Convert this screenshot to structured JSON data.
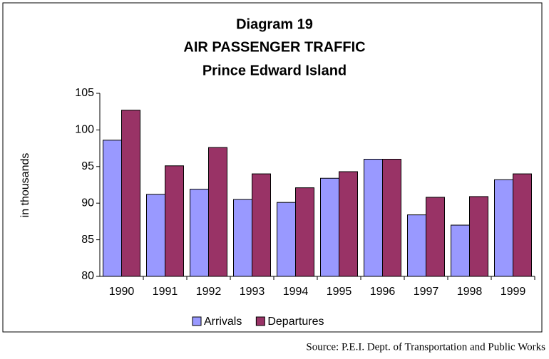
{
  "chart_data": {
    "type": "bar",
    "title": "Diagram 19",
    "subtitle": "AIR PASSENGER TRAFFIC",
    "subtitle2": "Prince Edward Island",
    "ylabel": "in thousands",
    "categories": [
      "1990",
      "1991",
      "1992",
      "1993",
      "1994",
      "1995",
      "1996",
      "1997",
      "1998",
      "1999"
    ],
    "series": [
      {
        "name": "Arrivals",
        "color": "#9999ff",
        "values": [
          98.6,
          91.2,
          91.9,
          90.5,
          90.1,
          93.4,
          96.0,
          88.4,
          87.0,
          93.2
        ]
      },
      {
        "name": "Departures",
        "color": "#993366",
        "values": [
          102.7,
          95.1,
          97.6,
          94.0,
          92.1,
          94.3,
          96.0,
          90.8,
          90.9,
          94.0
        ]
      }
    ],
    "ylim": [
      80,
      105
    ],
    "yticks": [
      80,
      85,
      90,
      95,
      100,
      105
    ],
    "legend": "bottom",
    "source": "Source: P.E.I. Dept. of Transportation and Public Works"
  }
}
